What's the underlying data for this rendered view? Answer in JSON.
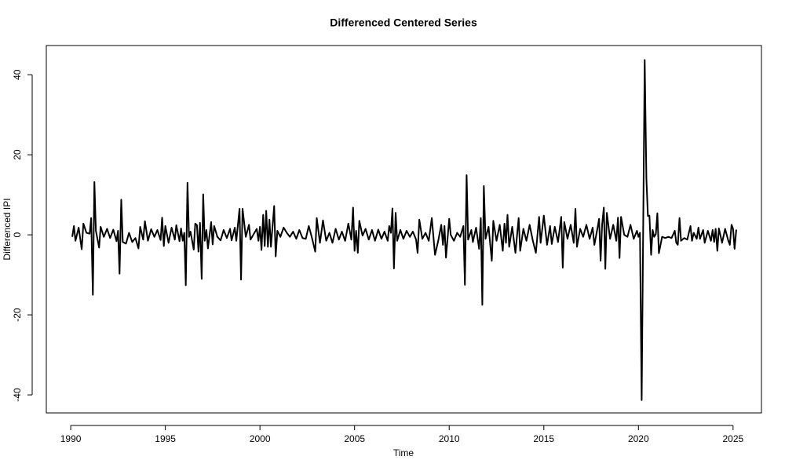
{
  "chart_data": {
    "type": "line",
    "title": "Differenced Centered Series",
    "x_label": "Time",
    "y_label": "Differenced IPI",
    "color": "#000000",
    "xlim": [
      1988.71,
      2026.5
    ],
    "ylim": [
      -44.5,
      47.3
    ],
    "xticks": [
      1990,
      1995,
      2000,
      2005,
      2010,
      2015,
      2020,
      2025
    ],
    "yticks": [
      -40,
      -20,
      0,
      20,
      40
    ],
    "x": [
      1990.08,
      1990.17,
      1990.25,
      1990.42,
      1990.58,
      1990.67,
      1990.83,
      1991.0,
      1991.08,
      1991.17,
      1991.25,
      1991.33,
      1991.5,
      1991.58,
      1991.75,
      1991.92,
      1992.08,
      1992.25,
      1992.42,
      1992.5,
      1992.58,
      1992.67,
      1992.75,
      1992.92,
      1993.08,
      1993.25,
      1993.42,
      1993.58,
      1993.67,
      1993.83,
      1993.92,
      1994.08,
      1994.25,
      1994.42,
      1994.58,
      1994.75,
      1994.83,
      1994.92,
      1995.0,
      1995.17,
      1995.33,
      1995.5,
      1995.58,
      1995.75,
      1995.83,
      1995.92,
      1996.0,
      1996.08,
      1996.17,
      1996.25,
      1996.33,
      1996.5,
      1996.58,
      1996.67,
      1996.75,
      1996.83,
      1996.92,
      1997.0,
      1997.08,
      1997.17,
      1997.25,
      1997.42,
      1997.5,
      1997.58,
      1997.75,
      1997.92,
      1998.08,
      1998.25,
      1998.42,
      1998.5,
      1998.67,
      1998.75,
      1998.92,
      1999.0,
      1999.08,
      1999.25,
      1999.42,
      1999.5,
      1999.67,
      1999.83,
      1999.92,
      2000.0,
      2000.08,
      2000.17,
      2000.25,
      2000.33,
      2000.42,
      2000.5,
      2000.58,
      2000.75,
      2000.83,
      2000.92,
      2001.08,
      2001.25,
      2001.42,
      2001.58,
      2001.75,
      2001.92,
      2002.08,
      2002.25,
      2002.42,
      2002.58,
      2002.75,
      2002.92,
      2003.0,
      2003.17,
      2003.33,
      2003.5,
      2003.67,
      2003.83,
      2004.0,
      2004.17,
      2004.33,
      2004.5,
      2004.67,
      2004.83,
      2004.92,
      2005.0,
      2005.08,
      2005.17,
      2005.25,
      2005.42,
      2005.58,
      2005.75,
      2005.92,
      2006.08,
      2006.25,
      2006.42,
      2006.58,
      2006.75,
      2006.83,
      2006.92,
      2007.0,
      2007.08,
      2007.17,
      2007.25,
      2007.42,
      2007.58,
      2007.75,
      2007.92,
      2008.08,
      2008.25,
      2008.33,
      2008.42,
      2008.58,
      2008.75,
      2008.92,
      2009.08,
      2009.25,
      2009.42,
      2009.58,
      2009.67,
      2009.75,
      2009.83,
      2010.0,
      2010.08,
      2010.25,
      2010.42,
      2010.58,
      2010.75,
      2010.83,
      2010.92,
      2011.0,
      2011.17,
      2011.25,
      2011.42,
      2011.58,
      2011.67,
      2011.75,
      2011.83,
      2011.92,
      2012.08,
      2012.25,
      2012.33,
      2012.5,
      2012.67,
      2012.83,
      2012.92,
      2013.0,
      2013.08,
      2013.17,
      2013.33,
      2013.5,
      2013.67,
      2013.75,
      2013.92,
      2014.08,
      2014.25,
      2014.42,
      2014.58,
      2014.75,
      2014.83,
      2015.0,
      2015.17,
      2015.33,
      2015.42,
      2015.58,
      2015.75,
      2015.92,
      2016.0,
      2016.08,
      2016.25,
      2016.42,
      2016.58,
      2016.67,
      2016.75,
      2016.92,
      2017.08,
      2017.25,
      2017.42,
      2017.58,
      2017.67,
      2017.83,
      2017.92,
      2018.0,
      2018.08,
      2018.17,
      2018.25,
      2018.33,
      2018.5,
      2018.67,
      2018.83,
      2018.92,
      2019.0,
      2019.08,
      2019.25,
      2019.42,
      2019.58,
      2019.75,
      2019.92,
      2020.0,
      2020.08,
      2020.17,
      2020.33,
      2020.42,
      2020.5,
      2020.58,
      2020.67,
      2020.75,
      2020.83,
      2020.92,
      2021.0,
      2021.08,
      2021.25,
      2021.42,
      2021.58,
      2021.75,
      2021.92,
      2022.0,
      2022.08,
      2022.17,
      2022.25,
      2022.42,
      2022.58,
      2022.75,
      2022.83,
      2022.92,
      2023.08,
      2023.17,
      2023.25,
      2023.42,
      2023.5,
      2023.67,
      2023.83,
      2023.92,
      2024.0,
      2024.08,
      2024.17,
      2024.25,
      2024.42,
      2024.58,
      2024.75,
      2024.83,
      2024.92,
      2025.0,
      2025.08,
      2025.17
    ],
    "values": [
      -0.5,
      2.2,
      -1.5,
      1.8,
      -3.6,
      2.8,
      0.5,
      0.3,
      4.2,
      -15,
      13.2,
      1,
      -3.2,
      2,
      -0.5,
      1.5,
      -0.8,
      1.3,
      -1.6,
      1,
      -9.7,
      8.8,
      -1.8,
      -2.2,
      0.5,
      -1.8,
      -0.8,
      -3.4,
      2,
      -1.2,
      3.4,
      -1.5,
      1.4,
      -0.5,
      1.2,
      -1.3,
      4.3,
      -2.8,
      2.2,
      -2,
      1.8,
      -1.2,
      2.4,
      -1.6,
      1.6,
      -1.5,
      0.5,
      -12.6,
      13,
      -0.5,
      0.8,
      -3.7,
      2.8,
      2.4,
      -4.2,
      3,
      -11,
      10.1,
      -1.5,
      1.2,
      -3.4,
      3.2,
      -2.4,
      2.2,
      -0.5,
      -1.4,
      1.2,
      -0.8,
      1.5,
      -1.4,
      1.8,
      -1.5,
      6.5,
      -11.2,
      6.5,
      -0.5,
      2.5,
      -1.2,
      0.2,
      1.5,
      -1.5,
      2,
      -3.8,
      5,
      -2.8,
      6,
      -3,
      3.8,
      -3,
      7.2,
      -5.4,
      1,
      -0.5,
      1.8,
      0.5,
      -0.5,
      0.8,
      -1,
      1.2,
      -0.8,
      -1,
      2.2,
      -0.8,
      -4.2,
      4.2,
      -2,
      3.6,
      -1.5,
      0.5,
      -2,
      1.5,
      -1.2,
      0.8,
      -1.5,
      2.8,
      -1.2,
      6.8,
      -4,
      1,
      -4.5,
      3.5,
      -0.2,
      1.5,
      -1.2,
      1.2,
      -1.5,
      1.3,
      -1,
      0.8,
      -1.5,
      2.2,
      0.5,
      6.6,
      -8.4,
      5.5,
      -1.5,
      1.2,
      -1,
      1,
      -0.5,
      0.8,
      -1.2,
      -4.5,
      3.8,
      -1,
      0.5,
      -1.5,
      4.2,
      -5,
      -1.5,
      2.5,
      -2.5,
      2.2,
      -5.7,
      4,
      0,
      -1.5,
      0.5,
      -0.5,
      2.2,
      -12.5,
      14.9,
      -1.2,
      1.2,
      -1.8,
      1.8,
      -3.5,
      4.2,
      -17.5,
      12.2,
      -1,
      2,
      -6.5,
      3.5,
      -1.5,
      2.5,
      -4,
      2.8,
      -2,
      5,
      -3,
      2,
      -4.5,
      4.2,
      -4,
      1.5,
      -1.5,
      2.5,
      -1.5,
      -4.5,
      4.5,
      -2,
      4.8,
      -2.5,
      2.2,
      -2.3,
      2,
      -1.8,
      4.5,
      -8.2,
      3.2,
      -1,
      2.5,
      -2,
      6.5,
      -3,
      1.5,
      -0.5,
      2.5,
      -1,
      1.8,
      -2.5,
      1.5,
      4,
      -6.5,
      2.5,
      6.8,
      -8.5,
      5.5,
      -1,
      2.5,
      -1.5,
      4.3,
      -5.8,
      4.5,
      0,
      -0.5,
      2.5,
      -1,
      1,
      -0.5,
      0.5,
      -41.3,
      43.7,
      14,
      4.7,
      4.8,
      -5,
      1.2,
      -0.5,
      0.2,
      5.4,
      -4.6,
      -0.5,
      -0.8,
      -0.5,
      -0.8,
      1,
      -2,
      -2.5,
      4.2,
      -1.5,
      -0.8,
      -1.2,
      2.2,
      -1.5,
      0.5,
      -1,
      1.8,
      -1,
      1.2,
      -2,
      1,
      -1.5,
      1.2,
      -1.8,
      1.5,
      -4,
      1.6,
      -2,
      1.5,
      -1.5,
      -2.5,
      2.5,
      1.5,
      -3.5,
      1.3
    ]
  }
}
